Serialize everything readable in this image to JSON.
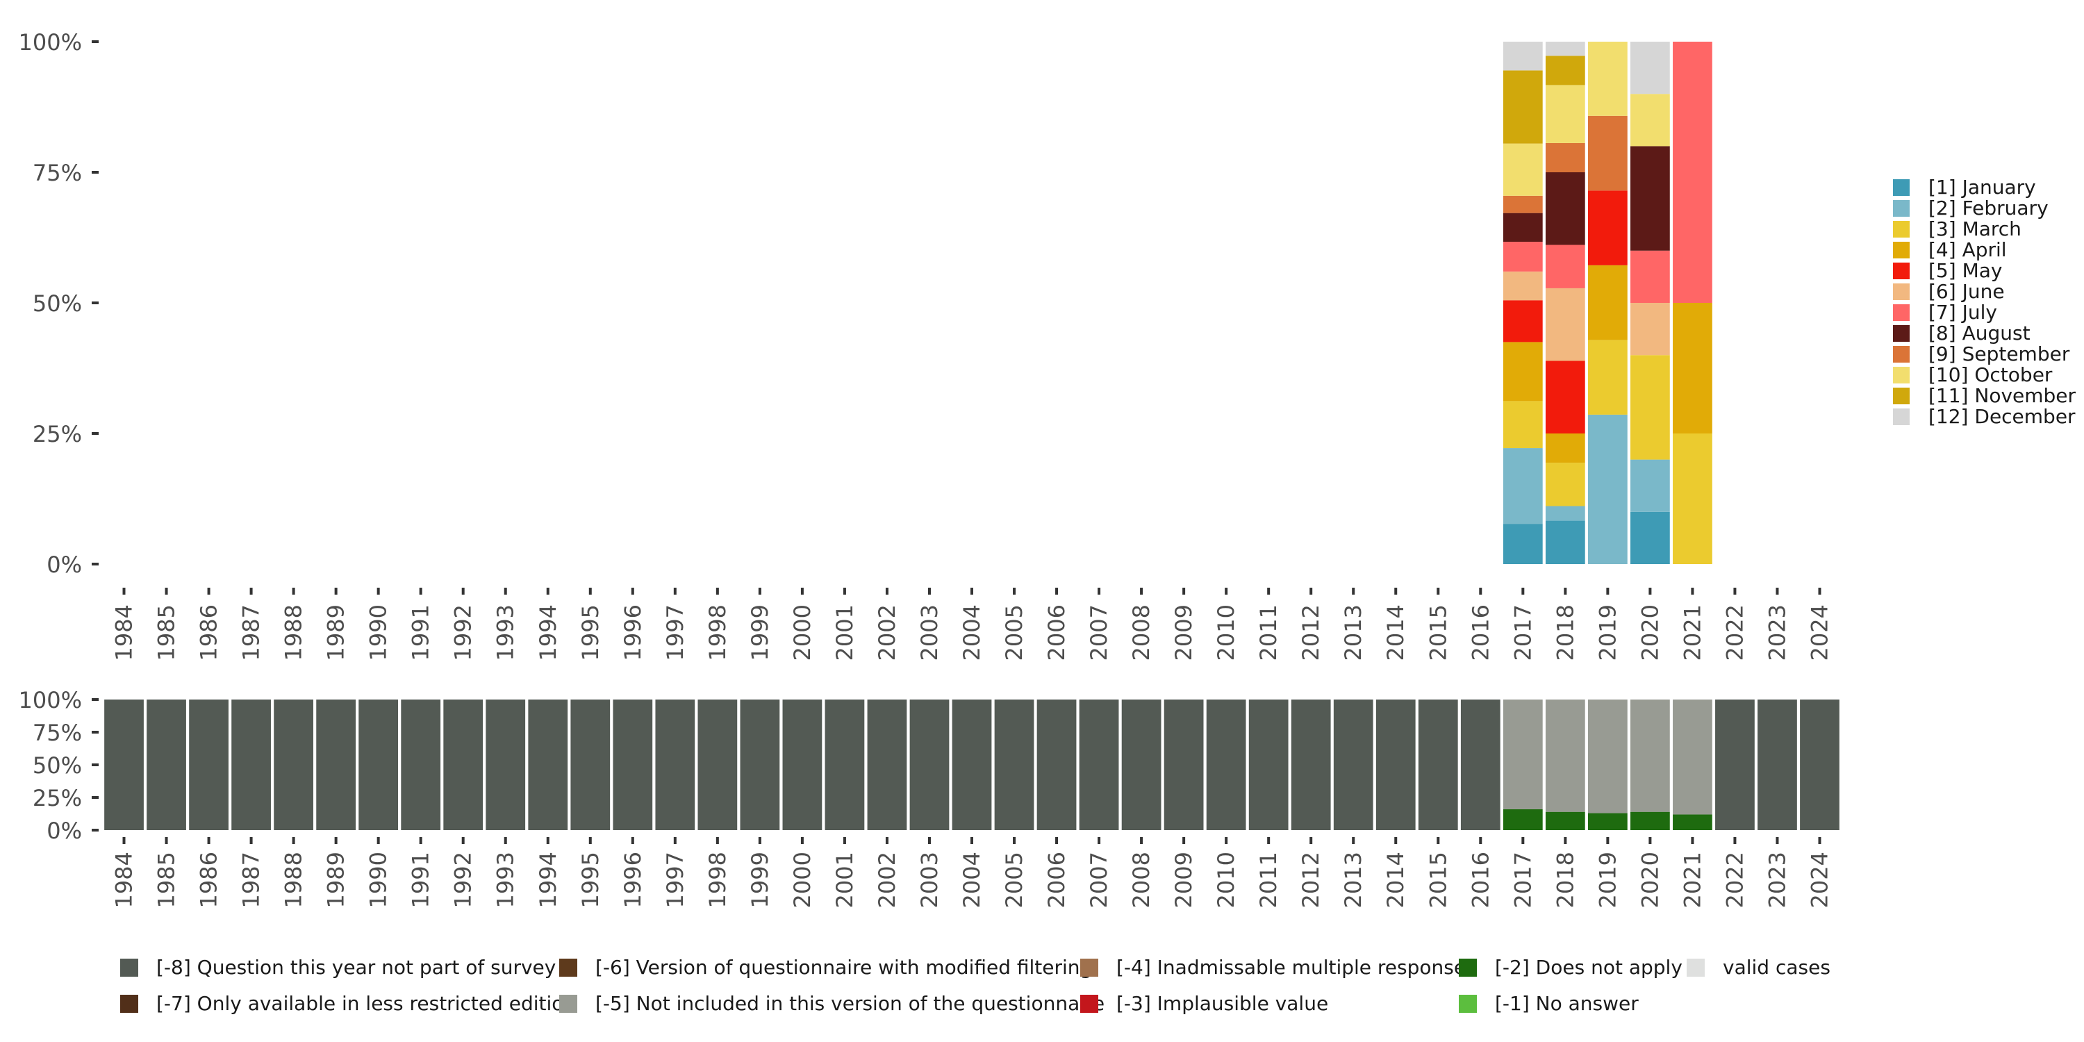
{
  "chart_data": [
    {
      "type": "bar",
      "stacked": true,
      "y_format": "percent",
      "ylim": [
        0,
        1
      ],
      "y_ticks": [
        "0%",
        "25%",
        "50%",
        "75%",
        "100%"
      ],
      "categories": [
        "1984",
        "1985",
        "1986",
        "1987",
        "1988",
        "1989",
        "1990",
        "1991",
        "1992",
        "1993",
        "1994",
        "1995",
        "1996",
        "1997",
        "1998",
        "1999",
        "2000",
        "2001",
        "2002",
        "2003",
        "2004",
        "2005",
        "2006",
        "2007",
        "2008",
        "2009",
        "2010",
        "2011",
        "2012",
        "2013",
        "2014",
        "2015",
        "2016",
        "2017",
        "2018",
        "2019",
        "2020",
        "2021",
        "2022",
        "2023",
        "2024"
      ],
      "legend_position": "right",
      "series": [
        {
          "name": "[1] January",
          "color": "#3E9BB5",
          "values": {
            "2017": 0.077,
            "2018": 0.083,
            "2019": 0.0,
            "2020": 0.1,
            "2021": 0.0
          }
        },
        {
          "name": "[2] February",
          "color": "#7AB8C9",
          "values": {
            "2017": 0.145,
            "2018": 0.028,
            "2019": 0.286,
            "2020": 0.1,
            "2021": 0.0
          }
        },
        {
          "name": "[3] March",
          "color": "#EBCB2F",
          "values": {
            "2017": 0.09,
            "2018": 0.083,
            "2019": 0.143,
            "2020": 0.2,
            "2021": 0.25
          }
        },
        {
          "name": "[4] April",
          "color": "#E1AB07",
          "values": {
            "2017": 0.113,
            "2018": 0.056,
            "2019": 0.143,
            "2020": 0.0,
            "2021": 0.25
          }
        },
        {
          "name": "[5] May",
          "color": "#F21B0C",
          "values": {
            "2017": 0.08,
            "2018": 0.139,
            "2019": 0.143,
            "2020": 0.0,
            "2021": 0.0
          }
        },
        {
          "name": "[6] June",
          "color": "#F2B880",
          "values": {
            "2017": 0.055,
            "2018": 0.139,
            "2019": 0.0,
            "2020": 0.1,
            "2021": 0.0
          }
        },
        {
          "name": "[7] July",
          "color": "#FF6666",
          "values": {
            "2017": 0.057,
            "2018": 0.083,
            "2019": 0.0,
            "2020": 0.1,
            "2021": 0.5
          }
        },
        {
          "name": "[8] August",
          "color": "#5C1A17",
          "values": {
            "2017": 0.055,
            "2018": 0.139,
            "2019": 0.0,
            "2020": 0.2,
            "2021": 0.0
          }
        },
        {
          "name": "[9] September",
          "color": "#DB7437",
          "values": {
            "2017": 0.033,
            "2018": 0.056,
            "2019": 0.143,
            "2020": 0.0,
            "2021": 0.0
          }
        },
        {
          "name": "[10] October",
          "color": "#F2DE6E",
          "values": {
            "2017": 0.1,
            "2018": 0.111,
            "2019": 0.142,
            "2020": 0.1,
            "2021": 0.0
          }
        },
        {
          "name": "[11] November",
          "color": "#D0A80C",
          "values": {
            "2017": 0.14,
            "2018": 0.056,
            "2019": 0.0,
            "2020": 0.0,
            "2021": 0.0
          }
        },
        {
          "name": "[12] December",
          "color": "#D6D6D6",
          "values": {
            "2017": 0.055,
            "2018": 0.027,
            "2019": 0.0,
            "2020": 0.1,
            "2021": 0.0
          }
        }
      ]
    },
    {
      "type": "bar",
      "stacked": true,
      "y_format": "percent",
      "ylim": [
        0,
        1
      ],
      "y_ticks": [
        "0%",
        "25%",
        "50%",
        "75%",
        "100%"
      ],
      "categories": [
        "1984",
        "1985",
        "1986",
        "1987",
        "1988",
        "1989",
        "1990",
        "1991",
        "1992",
        "1993",
        "1994",
        "1995",
        "1996",
        "1997",
        "1998",
        "1999",
        "2000",
        "2001",
        "2002",
        "2003",
        "2004",
        "2005",
        "2006",
        "2007",
        "2008",
        "2009",
        "2010",
        "2011",
        "2012",
        "2013",
        "2014",
        "2015",
        "2016",
        "2017",
        "2018",
        "2019",
        "2020",
        "2021",
        "2022",
        "2023",
        "2024"
      ],
      "legend_position": "bottom",
      "stack_order": [
        "[-2] Does not apply",
        "[-5] Not included in this version of the questionnaire",
        "[-8] Question this year not part of survey"
      ],
      "series": [
        {
          "name": "[-8] Question this year not part of survey",
          "color": "#535A54",
          "values": {
            "1984": 1,
            "1985": 1,
            "1986": 1,
            "1987": 1,
            "1988": 1,
            "1989": 1,
            "1990": 1,
            "1991": 1,
            "1992": 1,
            "1993": 1,
            "1994": 1,
            "1995": 1,
            "1996": 1,
            "1997": 1,
            "1998": 1,
            "1999": 1,
            "2000": 1,
            "2001": 1,
            "2002": 1,
            "2003": 1,
            "2004": 1,
            "2005": 1,
            "2006": 1,
            "2007": 1,
            "2008": 1,
            "2009": 1,
            "2010": 1,
            "2011": 1,
            "2012": 1,
            "2013": 1,
            "2014": 1,
            "2015": 1,
            "2016": 1,
            "2022": 1,
            "2023": 1,
            "2024": 1
          }
        },
        {
          "name": "[-7] Only available in less restricted edition",
          "color": "#512F19",
          "values": {}
        },
        {
          "name": "[-6] Version of questionnaire with modified filtering",
          "color": "#5E3A1C",
          "values": {}
        },
        {
          "name": "[-5] Not included in this version of the questionnaire",
          "color": "#989B93",
          "values": {
            "2017": 0.84,
            "2018": 0.86,
            "2019": 0.87,
            "2020": 0.86,
            "2021": 0.88
          }
        },
        {
          "name": "[-4] Inadmissable multiple response",
          "color": "#A0714D",
          "values": {}
        },
        {
          "name": "[-3] Implausible value",
          "color": "#C3161C",
          "values": {}
        },
        {
          "name": "[-2] Does not apply",
          "color": "#1E6B0F",
          "values": {
            "2017": 0.16,
            "2018": 0.14,
            "2019": 0.13,
            "2020": 0.14,
            "2021": 0.12
          }
        },
        {
          "name": "[-1] No answer",
          "color": "#5CBE3E",
          "values": {}
        },
        {
          "name": "valid cases",
          "color": "#DFE0DF",
          "values": {}
        }
      ]
    }
  ]
}
